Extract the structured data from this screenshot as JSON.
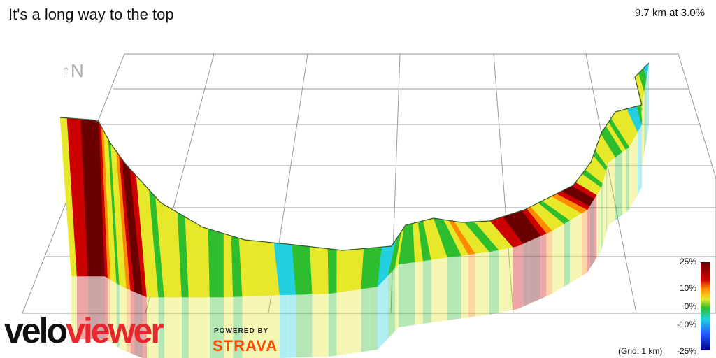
{
  "header": {
    "title": "It's a long way to the top",
    "stats": "9.7 km at 3.0%"
  },
  "compass": {
    "label": "↑N"
  },
  "legend": {
    "ticks": [
      "25%",
      "10%",
      "0%",
      "-10%",
      "-25%"
    ],
    "grid_note": "(Grid: 1 km)"
  },
  "branding": {
    "logo_part1": "velo",
    "logo_part2": "viewer",
    "powered_by": "POWERED BY",
    "strava": "STRAVA"
  },
  "colors": {
    "grade_max": "#6b0000",
    "grade_high": "#cc0000",
    "grade_mid": "#ff8c00",
    "grade_low": "#e8e82a",
    "grade_flat": "#2ebd2e",
    "grade_neg": "#22d0e0",
    "grade_min": "#000088"
  }
}
